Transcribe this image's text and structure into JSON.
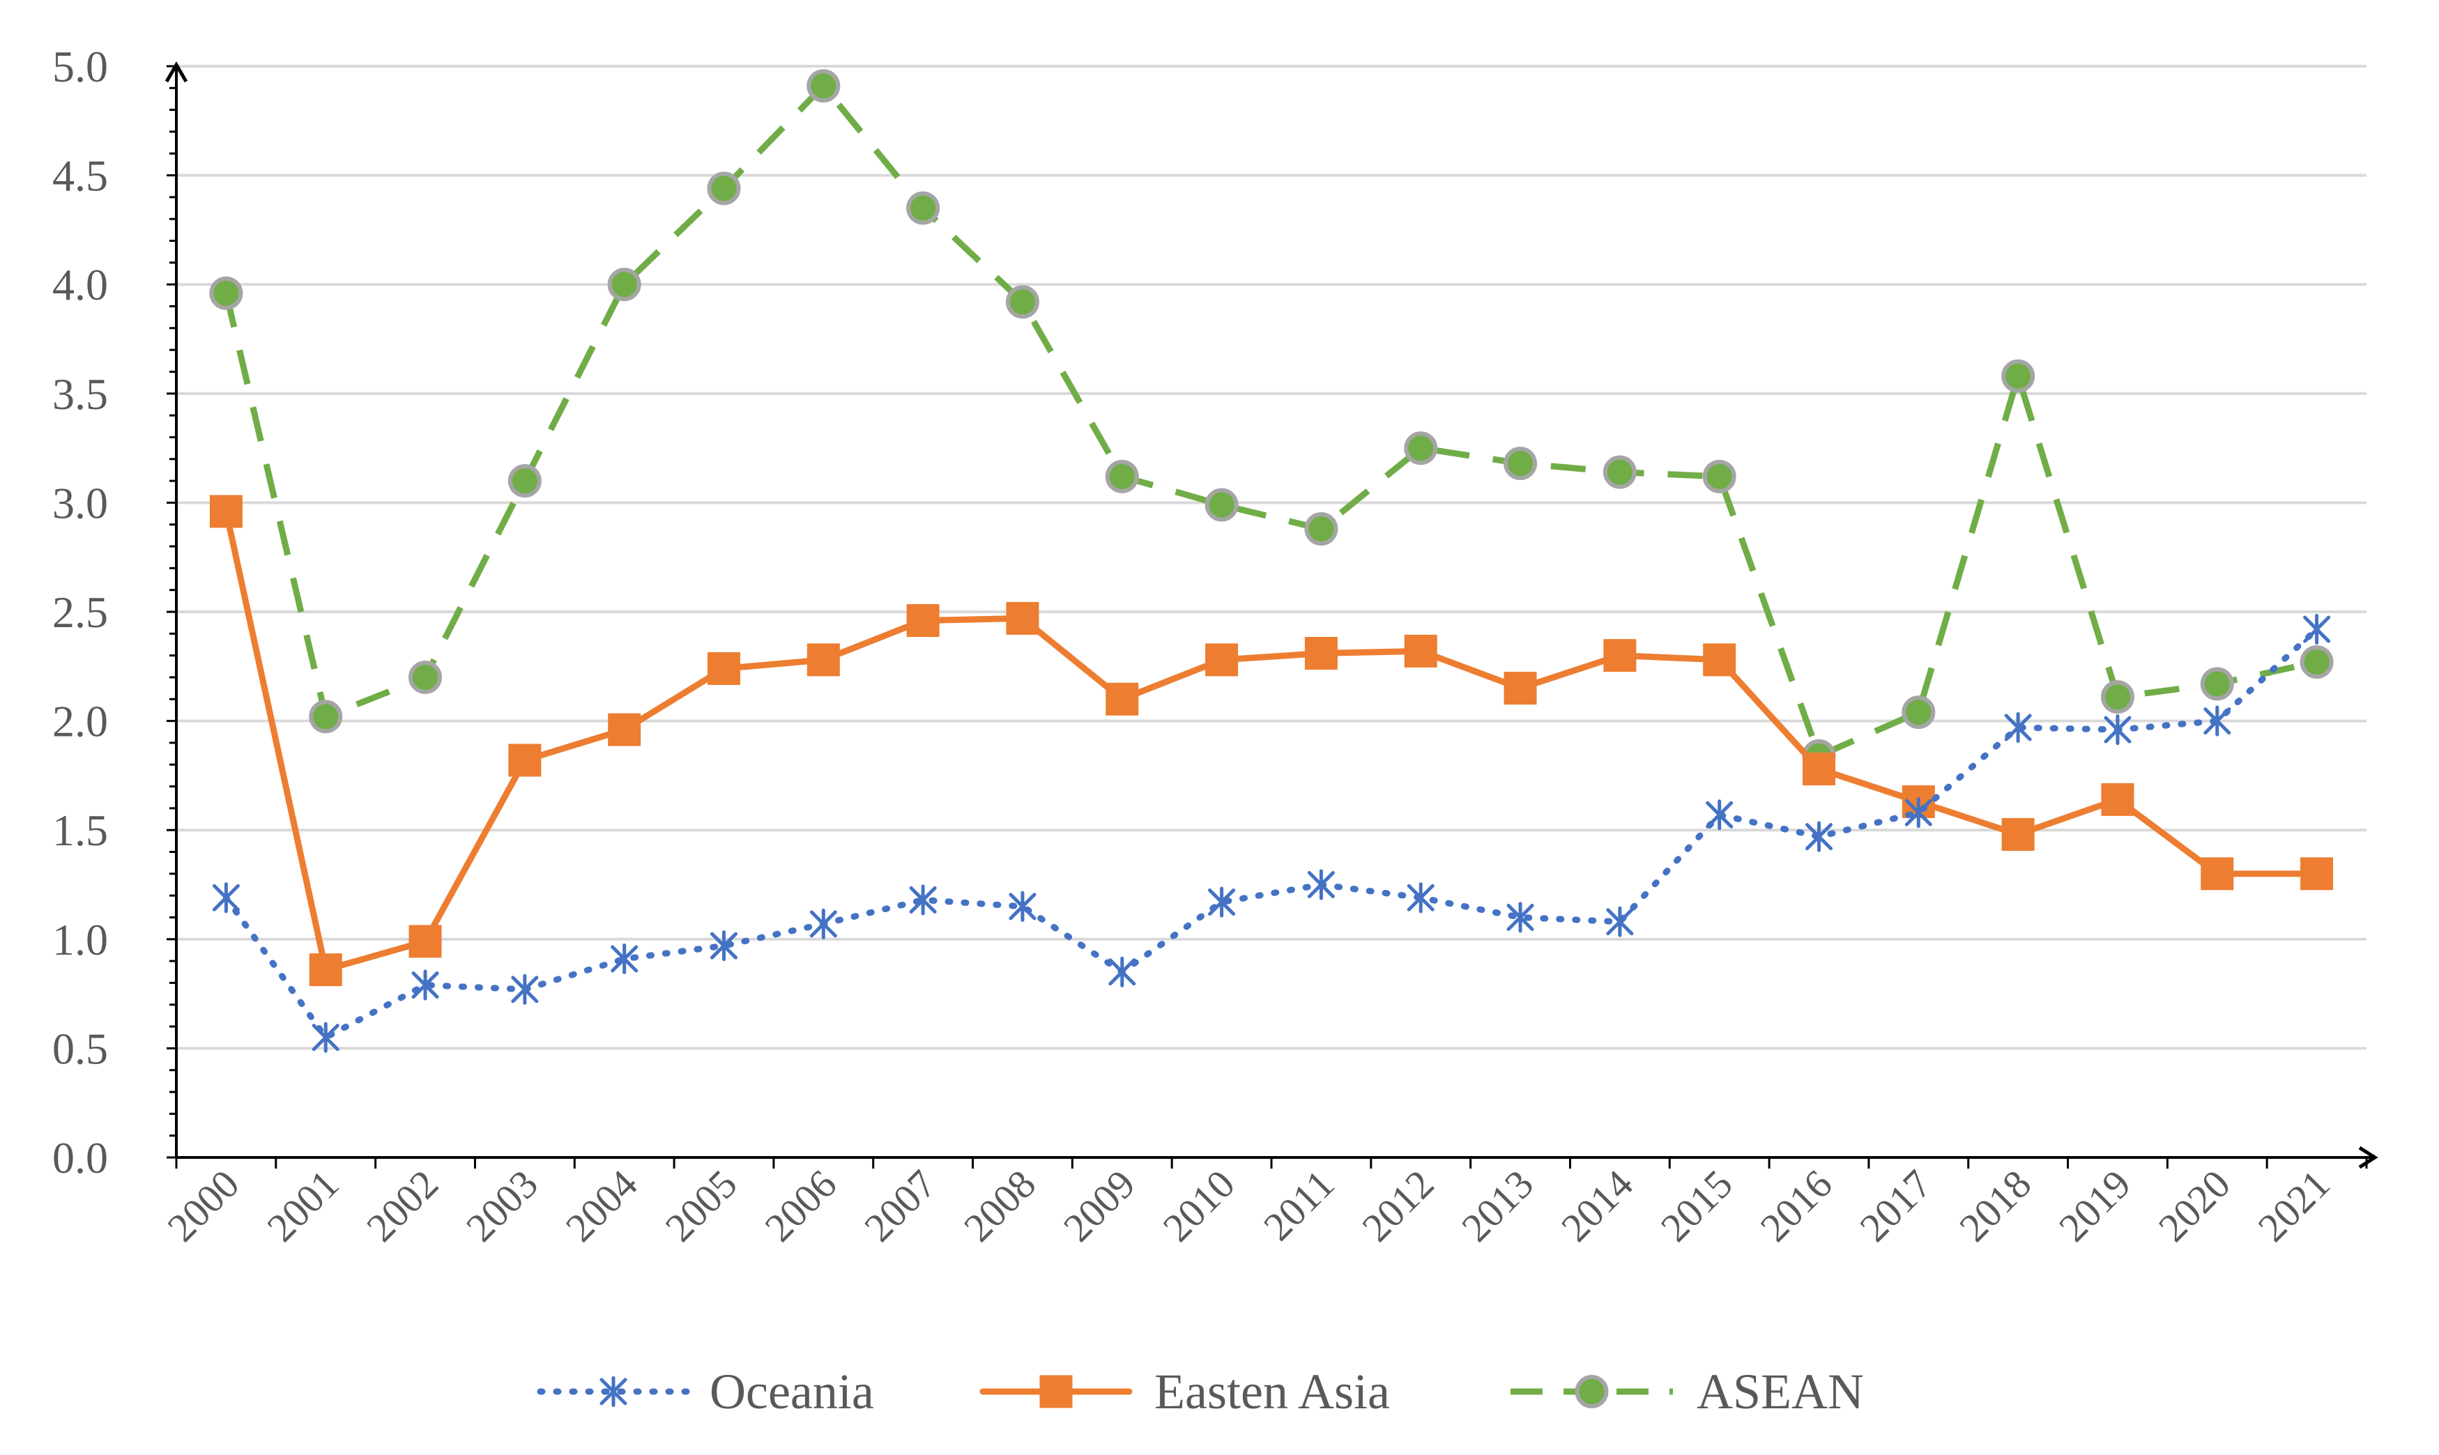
{
  "chart_data": {
    "type": "line",
    "title": "",
    "xlabel": "",
    "ylabel": "",
    "categories": [
      "2000",
      "2001",
      "2002",
      "2003",
      "2004",
      "2005",
      "2006",
      "2007",
      "2008",
      "2009",
      "2010",
      "2011",
      "2012",
      "2013",
      "2014",
      "2015",
      "2016",
      "2017",
      "2018",
      "2019",
      "2020",
      "2021"
    ],
    "ylim": [
      0,
      5.0
    ],
    "yticks": [
      "0.0",
      "0.5",
      "1.0",
      "1.5",
      "2.0",
      "2.5",
      "3.0",
      "3.5",
      "4.0",
      "4.5",
      "5.0"
    ],
    "grid": true,
    "legend_position": "bottom",
    "series": [
      {
        "name": "Oceania",
        "color": "#4472C4",
        "line_style": "dotted",
        "marker": "asterisk",
        "values": [
          1.19,
          0.55,
          0.79,
          0.77,
          0.91,
          0.97,
          1.07,
          1.18,
          1.15,
          0.85,
          1.17,
          1.25,
          1.19,
          1.1,
          1.08,
          1.57,
          1.47,
          1.58,
          1.97,
          1.96,
          2.0,
          2.42
        ]
      },
      {
        "name": "Easten Asia",
        "color": "#ED7D31",
        "line_style": "solid",
        "marker": "square",
        "values": [
          2.96,
          0.86,
          0.99,
          1.82,
          1.96,
          2.24,
          2.28,
          2.46,
          2.47,
          2.1,
          2.28,
          2.31,
          2.32,
          2.15,
          2.3,
          2.28,
          1.78,
          1.63,
          1.48,
          1.64,
          1.3,
          1.3
        ]
      },
      {
        "name": "ASEAN",
        "color": "#70AD47",
        "line_style": "dashed",
        "marker": "circle",
        "values": [
          3.96,
          2.02,
          2.2,
          3.1,
          4.0,
          4.44,
          4.91,
          4.35,
          3.92,
          3.12,
          2.99,
          2.88,
          3.25,
          3.18,
          3.14,
          3.12,
          1.84,
          2.04,
          3.58,
          2.11,
          2.17,
          2.27
        ]
      }
    ]
  }
}
